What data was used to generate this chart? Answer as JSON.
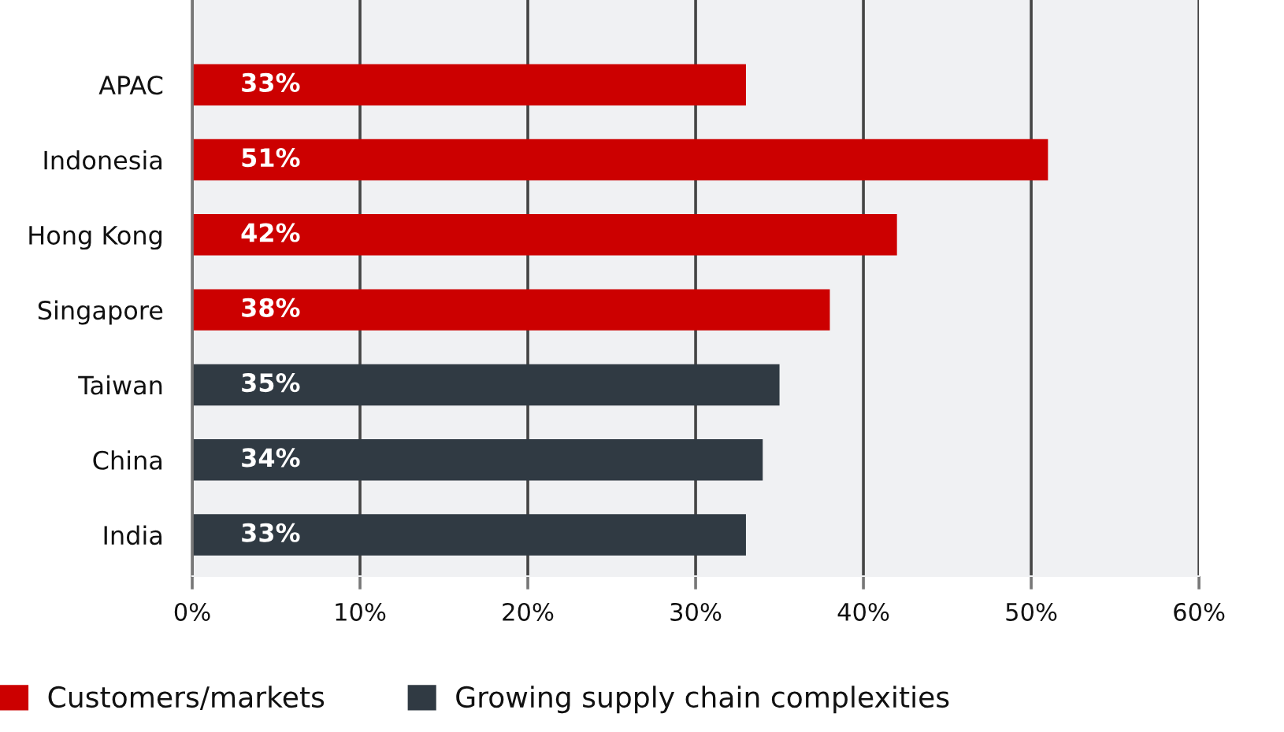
{
  "chart_data": {
    "type": "bar",
    "orientation": "horizontal",
    "stacked": true,
    "categories": [
      "APAC",
      "Indonesia",
      "Hong Kong",
      "Singapore",
      "Taiwan",
      "China",
      "India"
    ],
    "series": [
      {
        "name": "Customers/markets",
        "color": "#cc0000",
        "values": [
          33,
          51,
          42,
          38,
          null,
          null,
          null
        ],
        "value_labels": [
          "33%",
          "51%",
          "42%",
          "38%",
          null,
          null,
          null
        ]
      },
      {
        "name": "Growing supply chain complexities",
        "color": "#303a43",
        "values": [
          null,
          null,
          null,
          null,
          35,
          34,
          33
        ],
        "value_labels": [
          null,
          null,
          null,
          null,
          "35%",
          "34%",
          "33%"
        ]
      }
    ],
    "xlim": [
      0,
      60
    ],
    "xticks": [
      {
        "value": 0,
        "label": "0%"
      },
      {
        "value": 10,
        "label": "10%"
      },
      {
        "value": 20,
        "label": "20%"
      },
      {
        "value": 30,
        "label": "30%"
      },
      {
        "value": 40,
        "label": "40%"
      },
      {
        "value": 50,
        "label": "50%"
      },
      {
        "value": 60,
        "label": "60%"
      }
    ],
    "grid": "x",
    "legend": "bottom left"
  }
}
